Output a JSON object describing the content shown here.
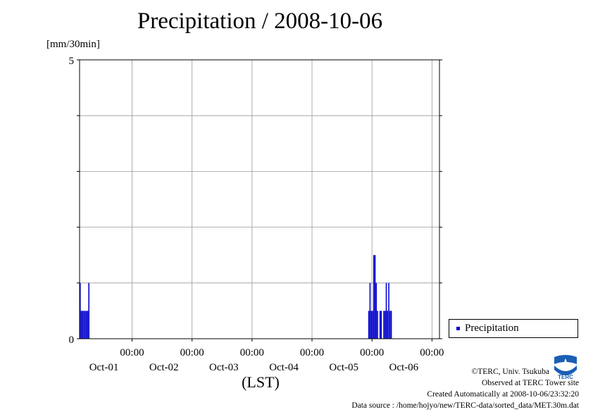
{
  "chart_data": {
    "type": "bar",
    "title": "Precipitation / 2008-10-06",
    "ylabel": "[mm/30min]",
    "xlabel": "(LST)",
    "ylim": [
      0,
      5
    ],
    "y_ticks": [
      "0",
      "5"
    ],
    "x_ticks": [
      {
        "time": "00:00",
        "date": "Oct-01"
      },
      {
        "time": "00:00",
        "date": "Oct-02"
      },
      {
        "time": "00:00",
        "date": "Oct-03"
      },
      {
        "time": "00:00",
        "date": "Oct-04"
      },
      {
        "time": "00:00",
        "date": "Oct-05"
      },
      {
        "time": "00:00",
        "date": "Oct-06"
      }
    ],
    "x_range": [
      "2008-09-30T03:00",
      "2008-10-06T03:00"
    ],
    "grid": true,
    "legend_position": "bottom-right outside",
    "series": [
      {
        "name": "Precipitation",
        "color": "#0000cc",
        "bin": "30min",
        "points": [
          {
            "t": "2008-09-30T03:00",
            "v": 1.0
          },
          {
            "t": "2008-09-30T03:30",
            "v": 0.5
          },
          {
            "t": "2008-09-30T04:00",
            "v": 0.5
          },
          {
            "t": "2008-09-30T04:30",
            "v": 0.5
          },
          {
            "t": "2008-09-30T05:00",
            "v": 0.5
          },
          {
            "t": "2008-09-30T05:30",
            "v": 0.5
          },
          {
            "t": "2008-09-30T06:00",
            "v": 0.5
          },
          {
            "t": "2008-09-30T06:30",
            "v": 1.0
          },
          {
            "t": "2008-10-04T22:30",
            "v": 0.5
          },
          {
            "t": "2008-10-04T23:00",
            "v": 1.0
          },
          {
            "t": "2008-10-04T23:30",
            "v": 0.5
          },
          {
            "t": "2008-10-05T00:00",
            "v": 0.5
          },
          {
            "t": "2008-10-05T00:30",
            "v": 1.5
          },
          {
            "t": "2008-10-05T01:00",
            "v": 1.5
          },
          {
            "t": "2008-10-05T01:30",
            "v": 1.0
          },
          {
            "t": "2008-10-05T02:00",
            "v": 0.5
          },
          {
            "t": "2008-10-05T03:00",
            "v": 0.5
          },
          {
            "t": "2008-10-05T03:30",
            "v": 0.5
          },
          {
            "t": "2008-10-05T04:30",
            "v": 0.5
          },
          {
            "t": "2008-10-05T05:00",
            "v": 0.5
          },
          {
            "t": "2008-10-05T05:30",
            "v": 1.0
          },
          {
            "t": "2008-10-05T06:00",
            "v": 0.5
          },
          {
            "t": "2008-10-05T06:30",
            "v": 1.0
          },
          {
            "t": "2008-10-05T07:00",
            "v": 0.5
          },
          {
            "t": "2008-10-05T07:30",
            "v": 0.5
          }
        ]
      }
    ]
  },
  "legend": {
    "label": "Precipitation",
    "color": "#0000cc"
  },
  "credits": {
    "copyright": "©TERC, Univ. Tsukuba",
    "observed": "Observed at TERC Tower site",
    "created": "Created Automatically at 2008-10-06/23:32:20",
    "source": "Data source : /home/hojyo/new/TERC-data/sorted_data/MET.30m.dat"
  },
  "logo": {
    "name": "terc-logo",
    "text": "TERC",
    "color": "#1a5fb4"
  }
}
